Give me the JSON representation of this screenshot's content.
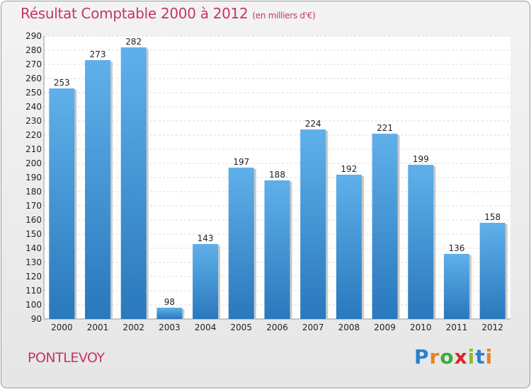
{
  "chart_data": {
    "type": "bar",
    "title": "Résultat Comptable 2000 à 2012",
    "unit_note": "(en milliers d'€)",
    "categories": [
      "2000",
      "2001",
      "2002",
      "2003",
      "2004",
      "2005",
      "2006",
      "2007",
      "2008",
      "2009",
      "2010",
      "2011",
      "2012"
    ],
    "values": [
      253,
      273,
      282,
      98,
      143,
      197,
      188,
      224,
      192,
      221,
      199,
      136,
      158
    ],
    "ylim": [
      90,
      290
    ],
    "ytick_step": 10,
    "xlabel": "",
    "ylabel": "",
    "grid": true,
    "bar_color": "#4d9fdf",
    "title_color": "#c8336a"
  },
  "footer": {
    "city": "PONTLEVOY",
    "logo_letters": [
      "P",
      "r",
      "o",
      "x",
      "i",
      "t",
      "i"
    ],
    "logo_colors": [
      "#2a7fcf",
      "#e8821e",
      "#3daa3a",
      "#d9262a",
      "#8bbd2a",
      "#2a7fcf",
      "#e8821e"
    ]
  }
}
